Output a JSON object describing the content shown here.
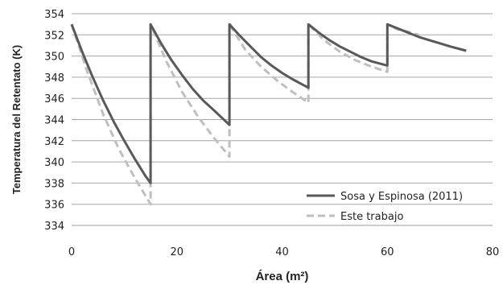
{
  "chart_data": {
    "type": "line",
    "xlabel": "Área (m²)",
    "ylabel": "Temperatura del Retentato (K)",
    "xlim": [
      0,
      80
    ],
    "ylim": [
      334,
      354
    ],
    "xticks": [
      0,
      20,
      40,
      60,
      80
    ],
    "yticks": [
      334,
      336,
      338,
      340,
      342,
      344,
      346,
      348,
      350,
      352,
      354
    ],
    "grid": "horizontal",
    "legend_position": "bottom-right",
    "series": [
      {
        "name": "Sosa y Espinosa (2011)",
        "color": "#595959",
        "style": "solid",
        "x": [
          0,
          2,
          4,
          6,
          8,
          10,
          12,
          14,
          15,
          15,
          17,
          19,
          21,
          23,
          25,
          27,
          30,
          30,
          32,
          34,
          36,
          38,
          40,
          42,
          45,
          45,
          47,
          49,
          51,
          53,
          55,
          57,
          60,
          60,
          62,
          64,
          66,
          68,
          70,
          72,
          75
        ],
        "y": [
          353,
          350.4,
          348,
          345.8,
          343.8,
          342,
          340.3,
          338.7,
          338,
          353,
          351.2,
          349.6,
          348.2,
          346.9,
          345.8,
          344.9,
          343.5,
          353,
          351.9,
          350.9,
          349.9,
          349.1,
          348.4,
          347.8,
          347,
          353,
          352.2,
          351.5,
          350.9,
          350.4,
          349.9,
          349.5,
          349.1,
          353,
          352.6,
          352.2,
          351.8,
          351.5,
          351.2,
          350.9,
          350.5
        ]
      },
      {
        "name": "Este trabajo",
        "color": "#bfbfbf",
        "style": "dashed",
        "x": [
          0,
          3,
          6,
          9,
          12,
          15,
          15,
          18,
          21,
          24,
          27,
          30,
          30,
          33,
          36,
          39,
          42,
          45,
          45,
          48,
          51,
          54,
          57,
          60,
          60,
          62,
          64,
          66
        ],
        "y": [
          353,
          348.5,
          344.5,
          341.2,
          338.5,
          336,
          353,
          349.5,
          346.6,
          344.3,
          342.3,
          340.5,
          353,
          350.6,
          349,
          347.7,
          346.6,
          345.6,
          353,
          351.5,
          350.4,
          349.6,
          349,
          348.5,
          353,
          352.5,
          352.3,
          352
        ]
      }
    ]
  }
}
